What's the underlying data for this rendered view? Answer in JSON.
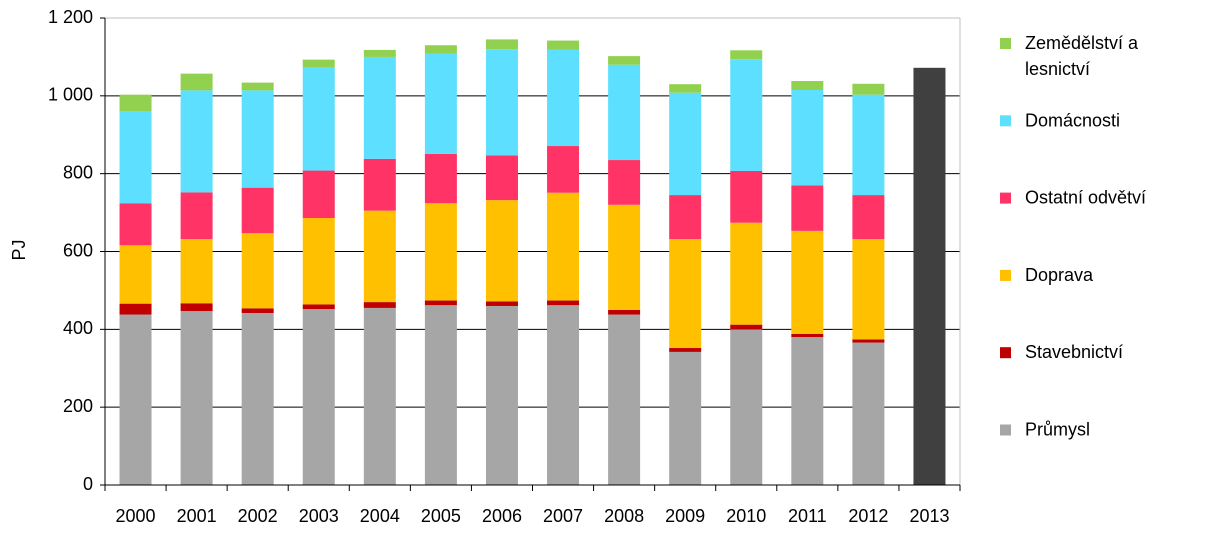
{
  "chart_data": {
    "type": "bar",
    "stacked": true,
    "ylabel": "PJ",
    "ylim": [
      0,
      1200
    ],
    "y_ticks": [
      {
        "value": 0,
        "label": "0"
      },
      {
        "value": 200,
        "label": "200"
      },
      {
        "value": 400,
        "label": "400"
      },
      {
        "value": 600,
        "label": "600"
      },
      {
        "value": 800,
        "label": "800"
      },
      {
        "value": 1000,
        "label": "1 000"
      },
      {
        "value": 1200,
        "label": "1 200"
      }
    ],
    "grid": true,
    "legend_position": "right",
    "categories": [
      "2000",
      "2001",
      "2002",
      "2003",
      "2004",
      "2005",
      "2006",
      "2007",
      "2008",
      "2009",
      "2010",
      "2011",
      "2012",
      "2013"
    ],
    "series": [
      {
        "name": "Průmysl",
        "color": "#a6a6a6",
        "values": [
          438,
          447,
          442,
          452,
          455,
          462,
          460,
          462,
          438,
          342,
          400,
          380,
          366,
          0
        ]
      },
      {
        "name": "Stavebnictví",
        "color": "#c00000",
        "values": [
          28,
          20,
          12,
          12,
          15,
          12,
          12,
          12,
          12,
          10,
          12,
          8,
          8,
          0
        ]
      },
      {
        "name": "Doprava",
        "color": "#ffc000",
        "values": [
          150,
          165,
          193,
          222,
          235,
          250,
          260,
          277,
          270,
          280,
          262,
          265,
          258,
          0
        ]
      },
      {
        "name": "Ostatní odvětví",
        "color": "#ff3366",
        "values": [
          108,
          120,
          117,
          122,
          133,
          127,
          115,
          120,
          115,
          113,
          133,
          117,
          113,
          0
        ]
      },
      {
        "name": "Domácnosti",
        "color": "#5ddfff",
        "values": [
          236,
          262,
          250,
          265,
          262,
          257,
          273,
          248,
          245,
          263,
          287,
          245,
          258,
          0
        ]
      },
      {
        "name": "Zemědělství a lesnictví",
        "color": "#92d050",
        "values": [
          43,
          43,
          20,
          20,
          18,
          22,
          25,
          23,
          22,
          22,
          23,
          23,
          28,
          0
        ]
      }
    ],
    "total_only": {
      "category": "2013",
      "value": 1072,
      "color": "#404040"
    },
    "legend_order": [
      "Zemědělství a lesnictví",
      "Domácnosti",
      "Ostatní odvětví",
      "Doprava",
      "Stavebnictví",
      "Průmysl"
    ],
    "legend_lines": {
      "Zemědělství a lesnictví": [
        "Zemědělství a",
        "lesnictví"
      ]
    }
  }
}
